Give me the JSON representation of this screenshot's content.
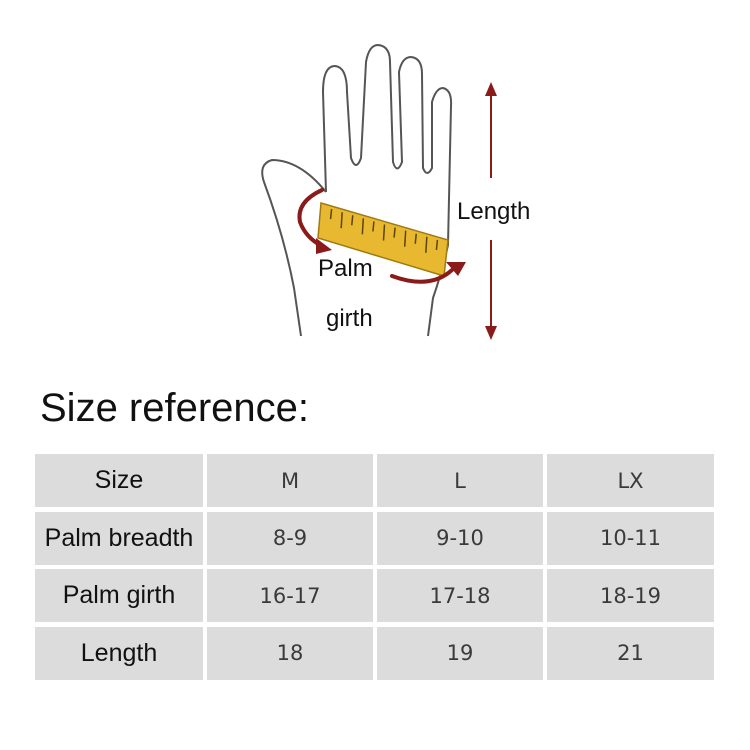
{
  "diagram": {
    "labels": {
      "length": "Length",
      "palm": "Palm",
      "girth": "girth"
    },
    "colors": {
      "arrow": "#8b1a1a",
      "ruler": "#e8b830",
      "outline": "#555555"
    }
  },
  "title": "Size reference:",
  "table": {
    "header": [
      "Size",
      "M",
      "L",
      "LX"
    ],
    "rows": [
      [
        "Palm breadth",
        "8-9",
        "9-10",
        "10-11"
      ],
      [
        "Palm girth",
        "16-17",
        "17-18",
        "18-19"
      ],
      [
        "Length",
        "18",
        "19",
        "21"
      ]
    ],
    "cell_color": "#dcdcdc"
  }
}
